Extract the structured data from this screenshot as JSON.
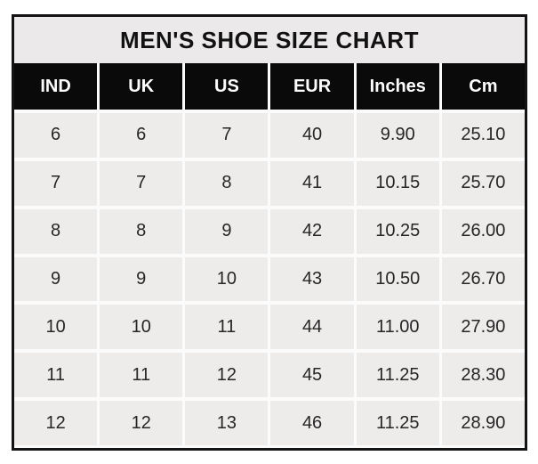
{
  "title": "MEN'S SHOE SIZE CHART",
  "colors": {
    "outer_border": "#141414",
    "title_bg": "#ebe9e9",
    "header_bg": "#0a0a0a",
    "header_text": "#fdfdfd",
    "cell_bg": "#eeebeb",
    "cell_text": "#262626",
    "separator": "#fcfbfb",
    "page_bg": "#ffffff"
  },
  "chart_data": {
    "type": "table",
    "title": "MEN'S SHOE SIZE CHART",
    "columns": [
      "IND",
      "UK",
      "US",
      "EUR",
      "Inches",
      "Cm"
    ],
    "rows": [
      [
        "6",
        "6",
        "7",
        "40",
        "9.90",
        "25.10"
      ],
      [
        "7",
        "7",
        "8",
        "41",
        "10.15",
        "25.70"
      ],
      [
        "8",
        "8",
        "9",
        "42",
        "10.25",
        "26.00"
      ],
      [
        "9",
        "9",
        "10",
        "43",
        "10.50",
        "26.70"
      ],
      [
        "10",
        "10",
        "11",
        "44",
        "11.00",
        "27.90"
      ],
      [
        "11",
        "11",
        "12",
        "45",
        "11.25",
        "28.30"
      ],
      [
        "12",
        "12",
        "13",
        "46",
        "11.25",
        "28.90"
      ]
    ],
    "layout": {
      "header_style": "black-background-white-text",
      "grid": "white-separators-on-gray-cells",
      "title_position": "top-center"
    }
  }
}
